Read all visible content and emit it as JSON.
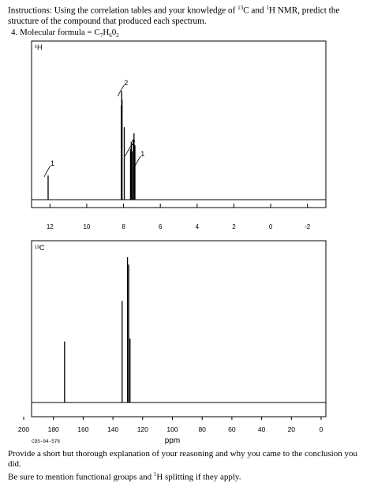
{
  "instructions": {
    "text_pre": "Instructions: Using the correlation tables and your knowledge of ",
    "sup1": "13",
    "text_mid": "C and ",
    "sup2": "1",
    "text_post": "H NMR, predict the structure of the compound that produced each spectrum."
  },
  "question": {
    "label": "4. Molecular formula = C",
    "c": "7",
    "h_label": "H",
    "h": "6",
    "o_label": "0",
    "o": "2"
  },
  "footer": {
    "line1": "Provide a short but thorough explanation of your reasoning and why you came to the conclusion you did.",
    "line2_pre": "Be sure to mention functional groups and ",
    "line2_sup": "1",
    "line2_post": "H splitting if they apply."
  },
  "chart_data": [
    {
      "type": "line",
      "panel_label": "¹H",
      "x_ticks": [
        "12",
        "10",
        "8",
        "6",
        "4",
        "2",
        "0",
        "-2"
      ],
      "xlim": [
        13,
        -3
      ],
      "peaks": [
        {
          "ppm": 12.1,
          "height": 0.2
        },
        {
          "ppm": 8.12,
          "height": 0.78
        },
        {
          "ppm": 8.1,
          "height": 0.9
        },
        {
          "ppm": 8.08,
          "height": 0.83
        },
        {
          "ppm": 7.96,
          "height": 0.6
        },
        {
          "ppm": 7.62,
          "height": 0.42
        },
        {
          "ppm": 7.58,
          "height": 0.48
        },
        {
          "ppm": 7.54,
          "height": 0.4
        },
        {
          "ppm": 7.47,
          "height": 0.5
        },
        {
          "ppm": 7.43,
          "height": 0.55
        },
        {
          "ppm": 7.38,
          "height": 0.45
        }
      ],
      "integrations": [
        "1",
        "2",
        "2",
        "1"
      ]
    },
    {
      "type": "bar",
      "panel_label": "¹³C",
      "x_ticks": [
        "200",
        "180",
        "160",
        "140",
        "120",
        "100",
        "80",
        "60",
        "40",
        "20",
        "0"
      ],
      "xlim": [
        200,
        0
      ],
      "xlabel": "ppm",
      "peaks": [
        {
          "ppm": 172.5,
          "height": 0.42
        },
        {
          "ppm": 133.8,
          "height": 0.7
        },
        {
          "ppm": 130.2,
          "height": 1.0
        },
        {
          "ppm": 129.4,
          "height": 0.95
        },
        {
          "ppm": 128.5,
          "height": 0.44
        }
      ],
      "source": "CDS-04-578"
    }
  ]
}
